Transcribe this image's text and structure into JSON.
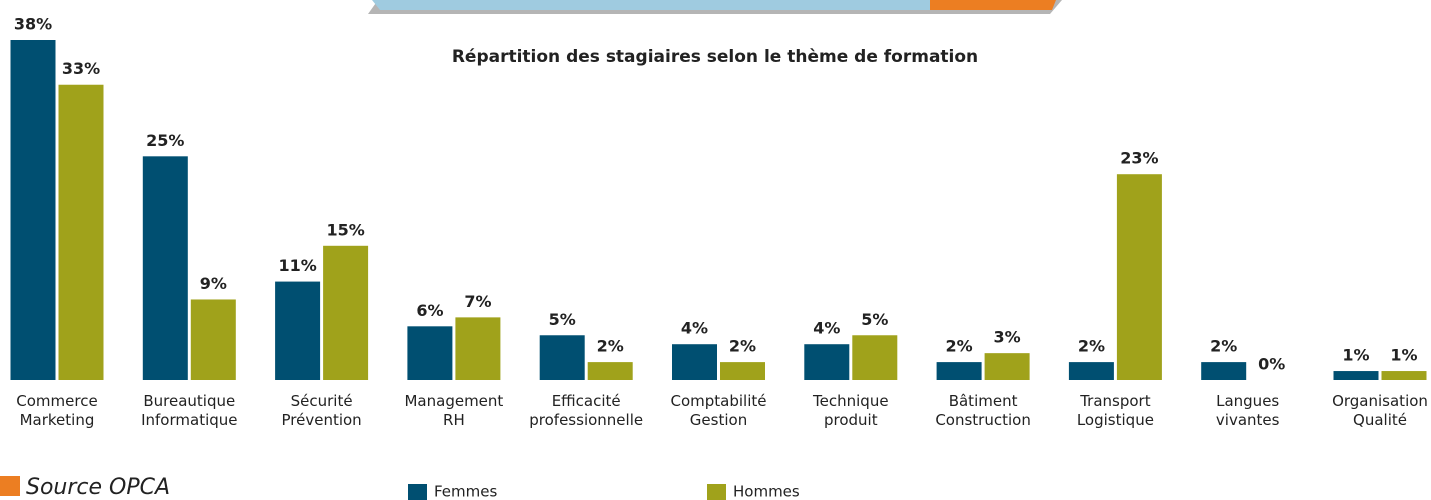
{
  "chart_data": {
    "type": "bar",
    "title": "Répartition des stagiaires selon le thème de formation",
    "categories": [
      "Commerce\nMarketing",
      "Bureautique\nInformatique",
      "Sécurité\nPrévention",
      "Management\nRH",
      "Efficacité\nprofessionnelle",
      "Comptabilité\nGestion",
      "Technique\nproduit",
      "Bâtiment\nConstruction",
      "Transport\nLogistique",
      "Langues\nvivantes",
      "Organisation\nQualité"
    ],
    "series": [
      {
        "name": "Femmes",
        "color": "#004f71",
        "values": [
          38,
          25,
          11,
          6,
          5,
          4,
          4,
          2,
          2,
          2,
          1
        ],
        "value_labels": [
          "38%",
          "25%",
          "11%",
          "6%",
          "5%",
          "4%",
          "4%",
          "2%",
          "2%",
          "2%",
          "1%"
        ]
      },
      {
        "name": "Hommes",
        "color": "#a0a21b",
        "values": [
          33,
          9,
          15,
          7,
          2,
          2,
          5,
          3,
          23,
          0,
          1
        ],
        "value_labels": [
          "33%",
          "9%",
          "15%",
          "7%",
          "2%",
          "2%",
          "5%",
          "3%",
          "23%",
          "0%",
          "1%"
        ]
      }
    ],
    "source": "Source OPCA"
  }
}
